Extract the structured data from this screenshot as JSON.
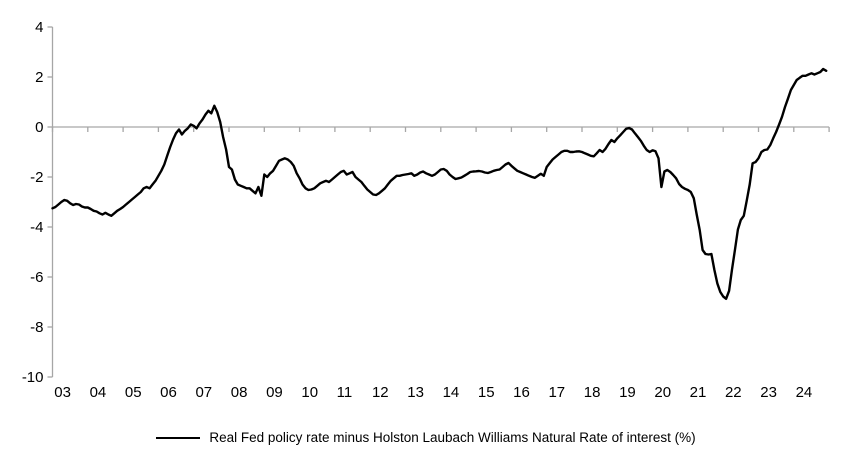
{
  "legend": {
    "series_label": "Real Fed policy rate minus Holston Laubach Williams Natural Rate of interest (%)"
  },
  "colors": {
    "line": "#000000",
    "axis": "#a6a6a6",
    "zero_line": "#a6a6a6",
    "text": "#000000",
    "background": "#ffffff"
  },
  "chart_data": {
    "type": "line",
    "title": "",
    "xlabel": "",
    "ylabel": "",
    "ylim": [
      -10,
      4
    ],
    "y_ticks": [
      4,
      2,
      0,
      -2,
      -4,
      -6,
      -8,
      -10
    ],
    "x_tick_labels": [
      "03",
      "04",
      "05",
      "06",
      "07",
      "08",
      "09",
      "10",
      "11",
      "12",
      "13",
      "14",
      "15",
      "16",
      "17",
      "18",
      "19",
      "20",
      "21",
      "22",
      "23",
      "24"
    ],
    "x_start_year": 2003,
    "x_step_months": 1,
    "grid": "zero-line-only",
    "legend_position": "bottom-center",
    "series": [
      {
        "name": "Real Fed policy rate minus Holston Laubach Williams Natural Rate of interest (%)",
        "color": "#000000",
        "values": [
          -3.25,
          -3.2,
          -3.1,
          -3.0,
          -2.92,
          -2.95,
          -3.05,
          -3.12,
          -3.08,
          -3.1,
          -3.18,
          -3.22,
          -3.22,
          -3.28,
          -3.35,
          -3.38,
          -3.45,
          -3.5,
          -3.43,
          -3.5,
          -3.55,
          -3.45,
          -3.35,
          -3.28,
          -3.2,
          -3.1,
          -3.0,
          -2.9,
          -2.8,
          -2.7,
          -2.6,
          -2.45,
          -2.4,
          -2.45,
          -2.3,
          -2.15,
          -1.95,
          -1.75,
          -1.5,
          -1.15,
          -0.8,
          -0.5,
          -0.25,
          -0.1,
          -0.3,
          -0.15,
          -0.05,
          0.1,
          0.05,
          -0.05,
          0.15,
          0.3,
          0.5,
          0.65,
          0.55,
          0.85,
          0.6,
          0.2,
          -0.4,
          -0.9,
          -1.6,
          -1.7,
          -2.1,
          -2.3,
          -2.35,
          -2.4,
          -2.45,
          -2.45,
          -2.55,
          -2.65,
          -2.4,
          -2.75,
          -1.9,
          -2.0,
          -1.85,
          -1.75,
          -1.55,
          -1.35,
          -1.3,
          -1.25,
          -1.3,
          -1.4,
          -1.55,
          -1.85,
          -2.05,
          -2.3,
          -2.45,
          -2.52,
          -2.5,
          -2.45,
          -2.35,
          -2.25,
          -2.2,
          -2.15,
          -2.2,
          -2.1,
          -2.0,
          -1.9,
          -1.8,
          -1.75,
          -1.9,
          -1.85,
          -1.8,
          -2.0,
          -2.1,
          -2.2,
          -2.35,
          -2.5,
          -2.6,
          -2.7,
          -2.72,
          -2.65,
          -2.55,
          -2.45,
          -2.3,
          -2.15,
          -2.05,
          -1.95,
          -1.95,
          -1.92,
          -1.9,
          -1.88,
          -1.85,
          -1.95,
          -1.9,
          -1.82,
          -1.78,
          -1.85,
          -1.9,
          -1.95,
          -1.9,
          -1.8,
          -1.7,
          -1.68,
          -1.75,
          -1.9,
          -2.0,
          -2.08,
          -2.05,
          -2.02,
          -1.95,
          -1.88,
          -1.8,
          -1.78,
          -1.77,
          -1.76,
          -1.78,
          -1.82,
          -1.84,
          -1.8,
          -1.75,
          -1.72,
          -1.7,
          -1.6,
          -1.5,
          -1.44,
          -1.55,
          -1.65,
          -1.75,
          -1.8,
          -1.85,
          -1.9,
          -1.95,
          -2.0,
          -2.03,
          -1.95,
          -1.87,
          -1.95,
          -1.6,
          -1.45,
          -1.3,
          -1.2,
          -1.1,
          -1.0,
          -0.95,
          -0.95,
          -1.0,
          -1.0,
          -0.98,
          -0.97,
          -1.0,
          -1.05,
          -1.1,
          -1.15,
          -1.17,
          -1.05,
          -0.92,
          -1.0,
          -0.87,
          -0.68,
          -0.52,
          -0.6,
          -0.45,
          -0.33,
          -0.2,
          -0.07,
          -0.04,
          -0.1,
          -0.25,
          -0.4,
          -0.55,
          -0.75,
          -0.92,
          -1.0,
          -0.93,
          -0.97,
          -1.25,
          -2.4,
          -1.78,
          -1.72,
          -1.8,
          -1.92,
          -2.05,
          -2.28,
          -2.4,
          -2.47,
          -2.52,
          -2.6,
          -2.85,
          -3.5,
          -4.12,
          -4.92,
          -5.08,
          -5.1,
          -5.08,
          -5.72,
          -6.25,
          -6.6,
          -6.78,
          -6.87,
          -6.55,
          -5.7,
          -4.9,
          -4.1,
          -3.72,
          -3.55,
          -2.95,
          -2.3,
          -1.45,
          -1.4,
          -1.25,
          -1.0,
          -0.92,
          -0.9,
          -0.72,
          -0.45,
          -0.2,
          0.1,
          0.41,
          0.8,
          1.13,
          1.48,
          1.68,
          1.88,
          1.97,
          2.05,
          2.05,
          2.1,
          2.15,
          2.1,
          2.15,
          2.2,
          2.32,
          2.25
        ]
      }
    ]
  }
}
